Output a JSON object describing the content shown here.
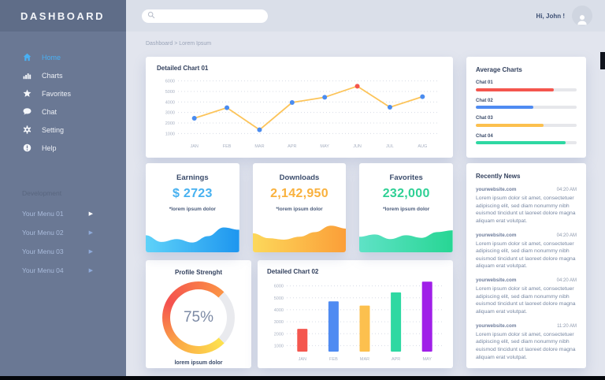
{
  "app": {
    "title": "DASHBOARD"
  },
  "topbar": {
    "search_placeholder": "",
    "greeting": "Hi, John !"
  },
  "breadcrumb": "Dashboard > Lorem Ipsum",
  "sidebar": {
    "items": [
      {
        "label": "Home",
        "icon": "home-icon",
        "active": true
      },
      {
        "label": "Charts",
        "icon": "charts-icon",
        "active": false
      },
      {
        "label": "Favorites",
        "icon": "star-icon",
        "active": false
      },
      {
        "label": "Chat",
        "icon": "chat-icon",
        "active": false
      },
      {
        "label": "Setting",
        "icon": "gear-icon",
        "active": false
      },
      {
        "label": "Help",
        "icon": "help-icon",
        "active": false
      }
    ],
    "section_label": "Development",
    "dev_items": [
      "Your Menu 01",
      "Your Menu 02",
      "Your Menu 03",
      "Your Menu 04"
    ]
  },
  "cards": {
    "chart01_title": "Detailed Chart 01",
    "avg_title": "Average Charts",
    "news_title": "Recently News",
    "profile_title": "Profile Strenght",
    "profile_caption": "lorem ipsum dolor",
    "chart02_title": "Detailed Chart 02"
  },
  "stats": [
    {
      "title": "Earnings",
      "value": "$ 2723",
      "caption": "*lorem ipsum dolor",
      "color": "#47b1f0",
      "spark_from": "#5ed2f9",
      "spark_to": "#1e96ef",
      "spark": [
        0.55,
        0.32,
        0.42,
        0.3,
        0.52,
        0.82,
        0.74
      ]
    },
    {
      "title": "Downloads",
      "value": "2,142,950",
      "caption": "*lorem ipsum dolor",
      "color": "#f9b13d",
      "spark_from": "#fcd85b",
      "spark_to": "#fb9e38",
      "spark": [
        0.62,
        0.45,
        0.4,
        0.5,
        0.66,
        0.88,
        0.78
      ]
    },
    {
      "title": "Favorites",
      "value": "232,000",
      "caption": "*lorem ipsum dolor",
      "color": "#2fd095",
      "spark_from": "#5fe2c6",
      "spark_to": "#27d694",
      "spark": [
        0.5,
        0.58,
        0.42,
        0.55,
        0.46,
        0.66,
        0.72
      ]
    }
  ],
  "news": {
    "items": [
      {
        "source": "yourwebsite.com",
        "time": "04:20 AM",
        "body": "Lorem ipsum dolor sit amet, consectetuer adipiscing elit, sed diam nonummy nibh euismod tincidunt ut laoreet dolore magna aliquam erat volutpat."
      },
      {
        "source": "yourwebsite.com",
        "time": "04:20 AM",
        "body": "Lorem ipsum dolor sit amet, consectetuer adipiscing elit, sed diam nonummy nibh euismod tincidunt ut laoreet dolore magna aliquam erat volutpat."
      },
      {
        "source": "yourwebsite.com",
        "time": "04:20 AM",
        "body": "Lorem ipsum dolor sit amet, consectetuer adipiscing elit, sed diam nonummy nibh euismod tincidunt ut laoreet dolore magna aliquam erat volutpat."
      },
      {
        "source": "yourwebsite.com",
        "time": "11:20 AM",
        "body": "Lorem ipsum dolor sit amet, consectetuer adipiscing elit, sed diam nonummy nibh euismod tincidunt ut laoreet dolore magna aliquam erat volutpat."
      }
    ]
  },
  "chart_data": [
    {
      "name": "detailed-chart-01",
      "type": "line",
      "title": "Detailed Chart 01",
      "x": [
        "JAN",
        "FEB",
        "MAR",
        "APR",
        "MAY",
        "JUN",
        "JUL",
        "AUG"
      ],
      "series": [
        {
          "name": "monthly",
          "values": [
            2450,
            3450,
            1350,
            3950,
            4450,
            5500,
            3500,
            4500
          ]
        }
      ],
      "line_color": "#fcc45a",
      "point_color": "#4a8cf0",
      "highlight_index": 5,
      "highlight_color": "#f4544c",
      "yticks": [
        1000,
        2000,
        3000,
        4000,
        5000,
        6000
      ],
      "ylim": [
        500,
        6500
      ],
      "grid": true,
      "legend": false
    },
    {
      "name": "average-charts",
      "type": "bar",
      "subtype": "progress",
      "title": "Average Charts",
      "categories": [
        "Chat 01",
        "Chat 02",
        "Chat 03",
        "Chat 04"
      ],
      "values": [
        77,
        57,
        67,
        89
      ],
      "max": 100,
      "colors": [
        "#f4564e",
        "#4f8bf2",
        "#fcc04e",
        "#2ed8a2"
      ],
      "track_color": "#e6e7eb"
    },
    {
      "name": "profile-strength",
      "type": "pie",
      "title": "Profile Strenght",
      "value": 75,
      "label": "75%",
      "colors": [
        "#fde24f",
        "#fbab46",
        "#f4514f",
        "#fb9345"
      ],
      "track_color": "#e9eaee"
    },
    {
      "name": "detailed-chart-02",
      "type": "bar",
      "title": "Detailed Chart 02",
      "categories": [
        "JAN",
        "FEB",
        "MAR",
        "APR",
        "MAY"
      ],
      "values": [
        2400,
        4700,
        4350,
        5450,
        6350
      ],
      "colors": [
        "#f4564e",
        "#4f8bf2",
        "#fcc04e",
        "#2ed8a2",
        "#a01fe8"
      ],
      "yticks": [
        1000,
        2000,
        3000,
        4000,
        5000,
        6000
      ],
      "ylim": [
        500,
        6500
      ],
      "grid": true
    }
  ]
}
